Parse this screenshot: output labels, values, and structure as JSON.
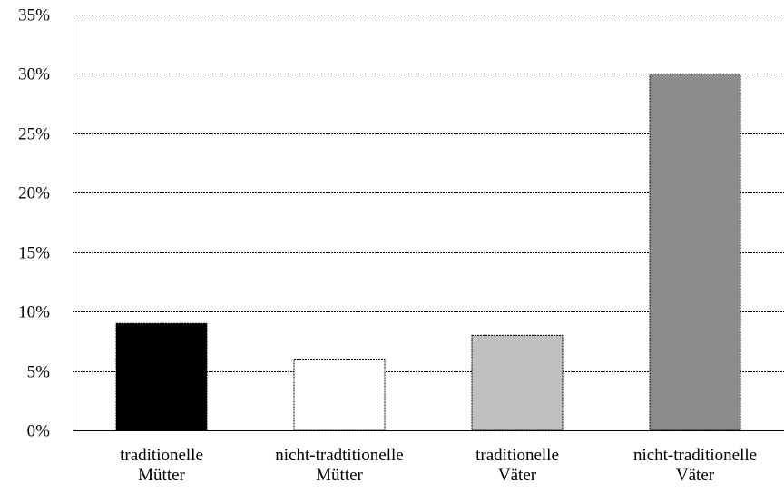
{
  "chart_data": {
    "type": "bar",
    "title": "",
    "xlabel": "",
    "ylabel": "",
    "categories": [
      [
        "traditionelle",
        "Mütter"
      ],
      [
        "nicht-tradtitionelle",
        "Mütter"
      ],
      [
        "traditionelle",
        "Väter"
      ],
      [
        "nicht-traditionelle",
        "Väter"
      ]
    ],
    "values": [
      9,
      6,
      8,
      30
    ],
    "unit": "%",
    "ylim": [
      0,
      35
    ],
    "yticks": [
      0,
      5,
      10,
      15,
      20,
      25,
      30,
      35
    ],
    "ytick_labels": [
      "0%",
      "5%",
      "10%",
      "15%",
      "20%",
      "25%",
      "30%",
      "35%"
    ],
    "colors": [
      "#000000",
      "#ffffff",
      "#c0c0c0",
      "#8c8c8c"
    ],
    "grid": true,
    "legend": "none"
  }
}
